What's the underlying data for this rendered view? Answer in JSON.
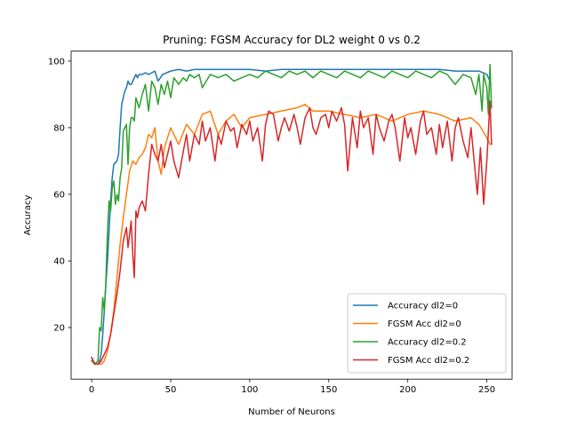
{
  "chart_data": {
    "type": "line",
    "title": "Pruning: FGSM Accuracy for DL2 weight 0 vs 0.2",
    "xlabel": "Number of Neurons",
    "ylabel": "Accuracy",
    "xlim": [
      -13,
      266
    ],
    "ylim": [
      4.5,
      103
    ],
    "xticks": [
      0,
      50,
      100,
      150,
      200,
      250
    ],
    "yticks": [
      20,
      40,
      60,
      80,
      100
    ],
    "grid": false,
    "legend_position": "lower right",
    "series": [
      {
        "name": "Accuracy dl2=0",
        "color": "#1f77b4",
        "x": [
          0,
          1,
          2,
          3,
          4,
          5,
          6,
          7,
          8,
          9,
          10,
          11,
          12,
          13,
          14,
          15,
          16,
          17,
          18,
          19,
          20,
          21,
          22,
          23,
          24,
          25,
          26,
          27,
          28,
          29,
          30,
          32,
          34,
          36,
          38,
          40,
          42,
          45,
          50,
          55,
          60,
          65,
          70,
          80,
          90,
          100,
          110,
          120,
          130,
          140,
          150,
          160,
          170,
          180,
          190,
          200,
          210,
          220,
          230,
          240,
          245,
          250,
          252
        ],
        "y": [
          11,
          10,
          9,
          9,
          9,
          10,
          12,
          18,
          25,
          33,
          40,
          49,
          58,
          65,
          69,
          69.5,
          70,
          72,
          80,
          87,
          89,
          91,
          92,
          94,
          93,
          93,
          94,
          95,
          96,
          95,
          96,
          96,
          96.5,
          96,
          96.5,
          97,
          94,
          96,
          97,
          97.5,
          97,
          97.5,
          97.5,
          97.5,
          97.5,
          97.5,
          97,
          97.5,
          97.5,
          97.5,
          97.5,
          97.5,
          97.5,
          97.5,
          97.5,
          97.5,
          97.5,
          97.5,
          97,
          97,
          97,
          96,
          94
        ]
      },
      {
        "name": "FGSM Acc dl2=0",
        "color": "#ff7f0e",
        "x": [
          0,
          2,
          4,
          6,
          8,
          10,
          12,
          14,
          16,
          18,
          20,
          22,
          24,
          26,
          28,
          30,
          32,
          34,
          36,
          38,
          40,
          42,
          44,
          46,
          50,
          55,
          60,
          65,
          70,
          75,
          80,
          85,
          90,
          95,
          100,
          110,
          120,
          130,
          135,
          140,
          150,
          160,
          170,
          180,
          190,
          200,
          210,
          220,
          230,
          240,
          245,
          250,
          252
        ],
        "y": [
          10,
          9,
          9,
          9,
          10,
          13,
          18,
          25,
          35,
          45,
          53,
          60,
          67,
          70,
          69,
          71,
          72,
          74,
          78,
          77,
          80,
          70,
          66,
          74,
          80,
          75,
          81,
          78,
          84,
          85,
          78,
          82,
          84,
          80,
          83,
          84,
          85,
          86,
          87,
          85,
          85,
          84,
          83,
          84,
          82,
          84,
          85,
          84,
          82,
          83,
          81,
          77,
          75
        ]
      },
      {
        "name": "Accuracy dl2=0.2",
        "color": "#2ca02c",
        "x": [
          0,
          2,
          4,
          5,
          6,
          7,
          8,
          9,
          10,
          11,
          12,
          13,
          14,
          15,
          16,
          17,
          18,
          19,
          20,
          21,
          22,
          23,
          24,
          25,
          26,
          27,
          28,
          30,
          32,
          34,
          36,
          38,
          40,
          42,
          44,
          46,
          48,
          50,
          52,
          55,
          58,
          60,
          62,
          65,
          68,
          70,
          75,
          80,
          85,
          90,
          95,
          100,
          105,
          110,
          115,
          120,
          125,
          130,
          135,
          140,
          145,
          150,
          155,
          160,
          165,
          170,
          175,
          180,
          185,
          190,
          195,
          200,
          205,
          210,
          215,
          220,
          225,
          230,
          235,
          240,
          243,
          245,
          247,
          248,
          250,
          251,
          252,
          253
        ],
        "y": [
          10,
          9,
          10,
          20,
          19,
          29,
          25,
          34,
          49,
          58,
          55,
          62,
          64,
          57,
          60,
          58,
          65,
          68,
          79,
          80,
          81,
          69,
          80,
          83,
          83,
          82,
          89,
          86,
          90,
          93,
          85,
          94,
          92,
          87,
          93,
          90,
          94,
          89,
          95,
          93,
          95,
          94,
          96,
          95,
          96,
          92,
          96,
          95,
          96,
          94,
          95,
          96,
          95,
          97,
          96,
          95,
          97,
          96,
          97,
          95,
          97,
          96,
          95,
          97,
          96,
          95,
          97,
          96,
          95,
          97,
          96,
          95,
          97,
          96,
          95,
          97,
          96,
          93,
          96,
          95,
          90,
          96,
          85,
          96,
          92,
          84,
          99,
          86
        ]
      },
      {
        "name": "FGSM Acc dl2=0.2",
        "color": "#d62728",
        "x": [
          0,
          2,
          4,
          6,
          8,
          10,
          12,
          14,
          16,
          18,
          20,
          22,
          23,
          24,
          25,
          26,
          27,
          28,
          29,
          30,
          32,
          34,
          36,
          38,
          40,
          42,
          44,
          46,
          48,
          50,
          52,
          55,
          58,
          60,
          62,
          65,
          68,
          70,
          72,
          75,
          78,
          80,
          82,
          85,
          88,
          90,
          92,
          95,
          98,
          100,
          102,
          105,
          108,
          110,
          112,
          115,
          118,
          120,
          122,
          125,
          128,
          130,
          132,
          135,
          138,
          140,
          142,
          145,
          148,
          150,
          152,
          155,
          158,
          160,
          162,
          165,
          168,
          170,
          172,
          175,
          178,
          180,
          182,
          185,
          188,
          190,
          192,
          195,
          198,
          200,
          202,
          205,
          208,
          210,
          212,
          215,
          218,
          220,
          222,
          225,
          228,
          230,
          232,
          235,
          238,
          240,
          242,
          244,
          246,
          248,
          250,
          252,
          253
        ],
        "y": [
          11,
          9,
          9,
          10,
          12,
          14,
          18,
          24,
          30,
          37,
          46,
          50,
          44,
          48,
          52,
          42,
          35,
          55,
          53,
          56,
          58,
          55,
          66,
          75,
          72,
          70,
          75,
          68,
          72,
          76,
          70,
          65,
          73,
          78,
          70,
          78,
          75,
          82,
          76,
          80,
          70,
          78,
          75,
          82,
          79,
          80,
          74,
          81,
          78,
          82,
          76,
          80,
          70,
          81,
          85,
          84,
          76,
          80,
          83,
          79,
          84,
          80,
          75,
          83,
          86,
          80,
          78,
          83,
          84,
          80,
          85,
          82,
          86,
          81,
          67,
          83,
          74,
          85,
          80,
          83,
          72,
          84,
          80,
          76,
          82,
          84,
          80,
          70,
          83,
          77,
          80,
          72,
          82,
          85,
          78,
          80,
          72,
          81,
          74,
          82,
          70,
          80,
          83,
          76,
          71,
          80,
          70,
          60,
          74,
          57,
          70,
          88,
          75
        ]
      }
    ]
  }
}
